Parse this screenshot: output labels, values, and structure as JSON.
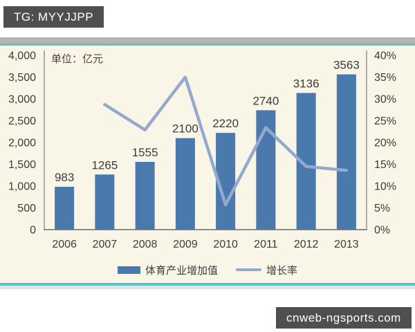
{
  "page": {
    "watermark_top": "TG: MYYJJPP",
    "watermark_bottom": "cnweb-ngsports.com"
  },
  "chart_data": {
    "type": "bar",
    "subtype": "bar+line combo, dual axis",
    "unit_label": "单位：亿元",
    "categories": [
      "2006",
      "2007",
      "2008",
      "2009",
      "2010",
      "2011",
      "2012",
      "2013"
    ],
    "series": [
      {
        "name": "体育产业增加值",
        "type": "bar",
        "axis": "left",
        "values": [
          983,
          1265,
          1555,
          2100,
          2220,
          2740,
          3136,
          3563
        ],
        "data_labels": [
          "983",
          "1265",
          "1555",
          "2100",
          "2220",
          "2740",
          "3136",
          "3563"
        ],
        "color": "#4a79ad"
      },
      {
        "name": "增长率",
        "type": "line",
        "axis": "right",
        "values": [
          null,
          28.7,
          22.9,
          35.0,
          5.7,
          23.4,
          14.5,
          13.6
        ],
        "color": "#93aacd"
      }
    ],
    "left_axis": {
      "min": 0,
      "max": 4000,
      "tick_labels": [
        "0",
        "500",
        "1,000",
        "1,500",
        "2,000",
        "2,500",
        "3,000",
        "3,500",
        "4,000"
      ]
    },
    "right_axis": {
      "min": 0,
      "max": 40,
      "tick_labels": [
        "0%",
        "5%",
        "10%",
        "15%",
        "20%",
        "25%",
        "30%",
        "35%",
        "40%"
      ]
    },
    "grid": false,
    "legend_position": "bottom",
    "plot_background": "#f9f5e7"
  },
  "colors": {
    "bar": "#4a79ad",
    "line": "#93aacd",
    "plot_background": "#f9f5e7",
    "axis_line": "#9a9a9a",
    "text": "#3b3b3b",
    "badge_background": "#4f4f4f",
    "cyan_rule": "#56c5d0",
    "gray_band": "#b4b4b4"
  }
}
